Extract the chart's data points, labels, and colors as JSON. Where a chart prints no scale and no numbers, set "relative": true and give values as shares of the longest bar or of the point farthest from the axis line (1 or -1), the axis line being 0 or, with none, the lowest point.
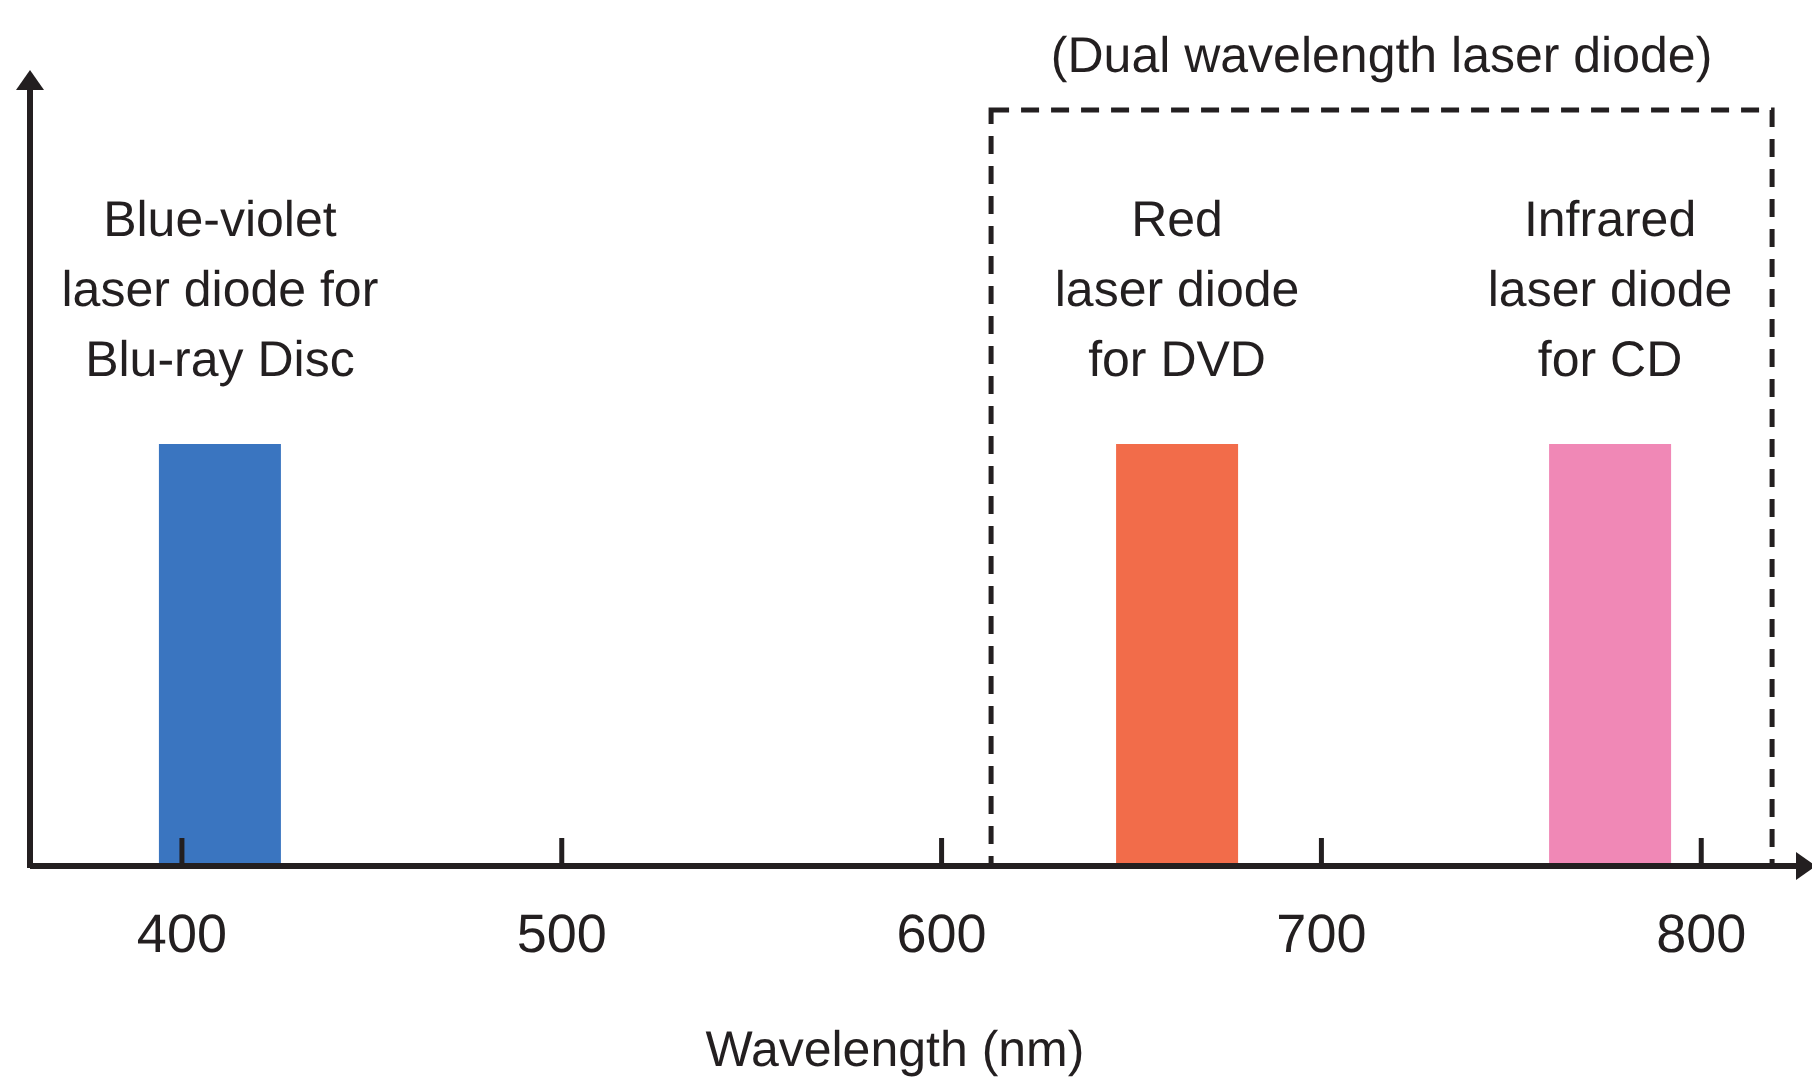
{
  "chart_data": {
    "type": "bar",
    "relative": true,
    "xlabel": "Wavelength (nm)",
    "xlim": [
      360,
      826
    ],
    "xticks": [
      400,
      500,
      600,
      700,
      800
    ],
    "series": [
      {
        "name": "Blue-violet laser diode for Blu-ray Disc",
        "color": "#3a75c0",
        "x": [
          410
        ],
        "values": [
          1
        ]
      },
      {
        "name": "Red laser diode for DVD",
        "color": "#f26c4a",
        "x": [
          662
        ],
        "values": [
          1
        ]
      },
      {
        "name": "Infrared laser diode for CD",
        "color": "#f088b6",
        "x": [
          776
        ],
        "values": [
          1
        ]
      }
    ],
    "annotations": [
      "(Dual wavelength laser diode)"
    ]
  }
}
